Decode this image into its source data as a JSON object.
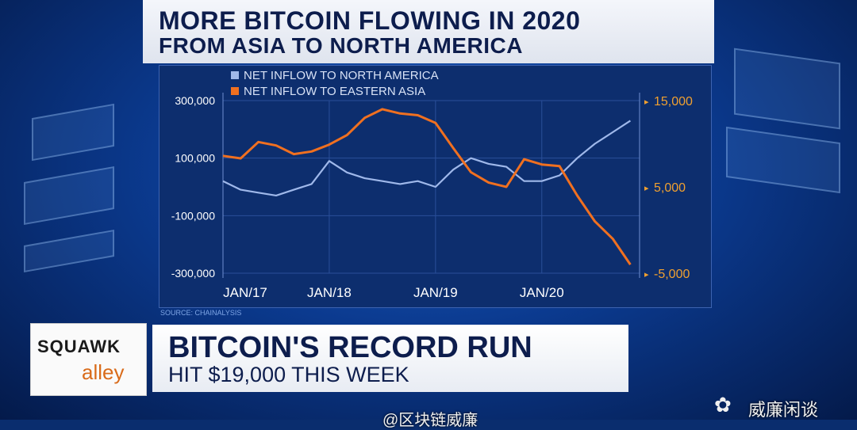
{
  "headline": "MORE BITCOIN FLOWING IN 2020",
  "subhead": "FROM ASIA TO NORTH AMERICA",
  "source": "SOURCE: CHAINALYSIS",
  "show": {
    "name_top": "SQUAWK",
    "name_bottom": "alley"
  },
  "lower_third": {
    "title": "BITCOIN'S RECORD RUN",
    "subtitle": "HIT $19,000 THIS WEEK"
  },
  "watermarks": {
    "wechat": "威廉闲谈",
    "weibo": "@区块链威廉"
  },
  "colors": {
    "north_america": "#9fb8ea",
    "eastern_asia": "#f07020",
    "right_axis": "#f0a030",
    "left_axis": "#ffffff"
  },
  "chart_data": {
    "type": "line",
    "x_labels": [
      "JAN/17",
      "JAN/18",
      "JAN/19",
      "JAN/20"
    ],
    "left_axis": {
      "ticks": [
        "300,000",
        "100,000",
        "-100,000",
        "-300,000"
      ],
      "range": [
        -300000,
        300000
      ]
    },
    "right_axis": {
      "ticks": [
        "15,000",
        "5,000",
        "-5,000"
      ],
      "range": [
        -5000,
        15000
      ]
    },
    "legend": [
      "NET INFLOW TO NORTH AMERICA",
      "NET INFLOW TO EASTERN ASIA"
    ],
    "series": [
      {
        "name": "NET INFLOW TO NORTH AMERICA",
        "axis": "left",
        "x": [
          "2017-01",
          "2017-03",
          "2017-05",
          "2017-07",
          "2017-09",
          "2017-11",
          "2018-01",
          "2018-03",
          "2018-05",
          "2018-07",
          "2018-09",
          "2018-11",
          "2019-01",
          "2019-03",
          "2019-05",
          "2019-07",
          "2019-09",
          "2019-11",
          "2020-01",
          "2020-03",
          "2020-05",
          "2020-07",
          "2020-09",
          "2020-11"
        ],
        "values": [
          20000,
          -10000,
          -20000,
          -30000,
          -10000,
          10000,
          90000,
          50000,
          30000,
          20000,
          10000,
          20000,
          0,
          60000,
          100000,
          80000,
          70000,
          20000,
          20000,
          40000,
          100000,
          150000,
          190000,
          230000
        ]
      },
      {
        "name": "NET INFLOW TO EASTERN ASIA",
        "axis": "right",
        "x": [
          "2017-01",
          "2017-03",
          "2017-05",
          "2017-07",
          "2017-09",
          "2017-11",
          "2018-01",
          "2018-03",
          "2018-05",
          "2018-07",
          "2018-09",
          "2018-11",
          "2019-01",
          "2019-03",
          "2019-05",
          "2019-07",
          "2019-09",
          "2019-11",
          "2020-01",
          "2020-03",
          "2020-05",
          "2020-07",
          "2020-09",
          "2020-11"
        ],
        "values": [
          8600,
          8300,
          10200,
          9800,
          8800,
          9100,
          9900,
          11000,
          13000,
          14000,
          13500,
          13300,
          12400,
          9500,
          6700,
          5500,
          5000,
          8200,
          7600,
          7400,
          4000,
          1000,
          -1000,
          -4000
        ]
      }
    ]
  }
}
